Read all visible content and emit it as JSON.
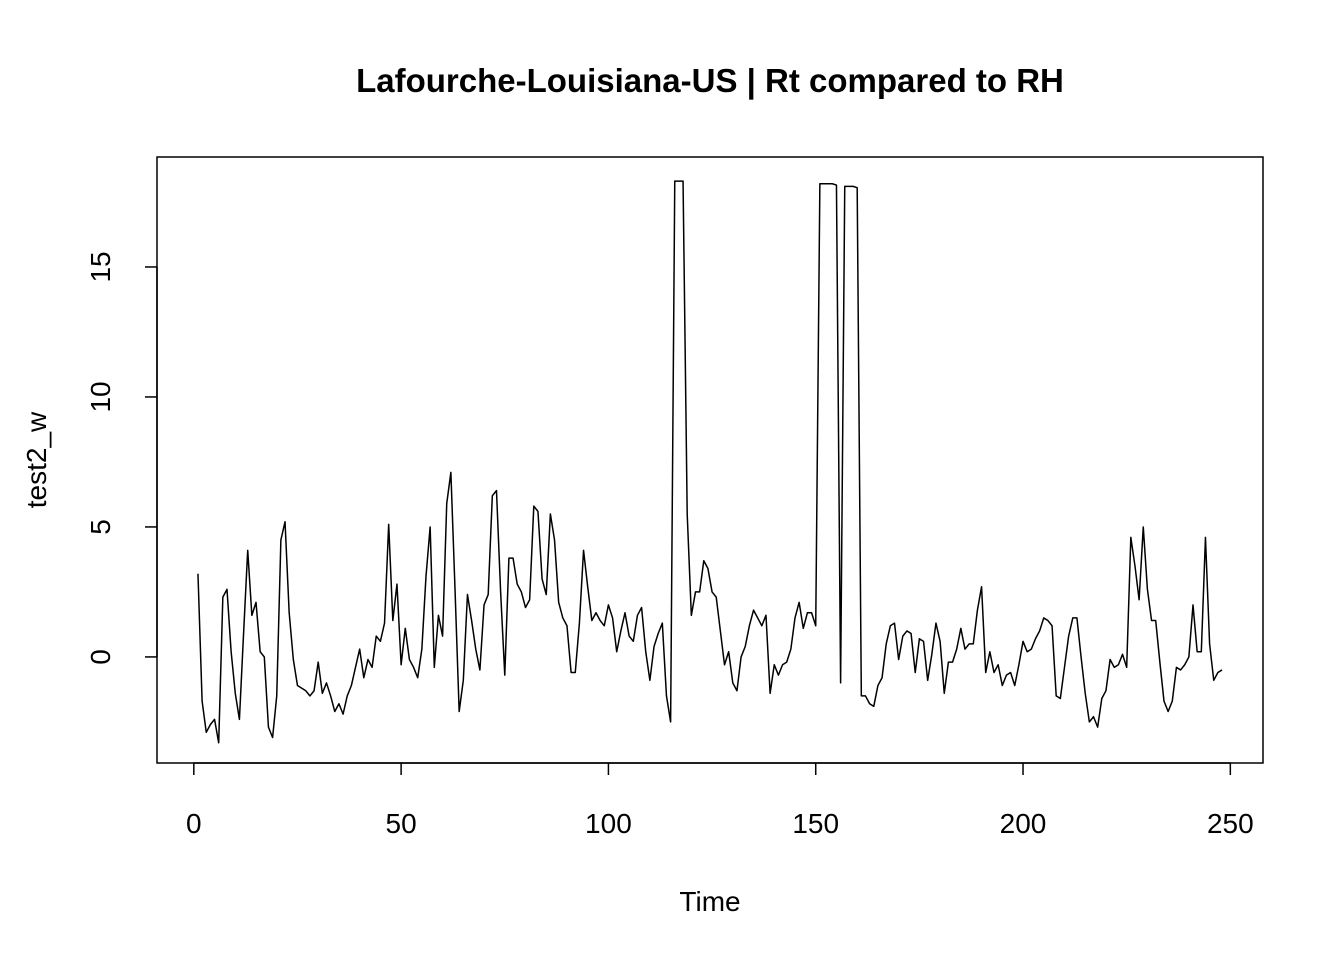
{
  "chart_data": {
    "type": "line",
    "title": "Lafourche-Louisiana-US | Rt compared to RH",
    "x_label": "Time",
    "y_label": "test2_w",
    "x": [
      1,
      2,
      3,
      4,
      5,
      6,
      7,
      8,
      9,
      10,
      11,
      12,
      13,
      14,
      15,
      16,
      17,
      18,
      19,
      20,
      21,
      22,
      23,
      24,
      25,
      26,
      27,
      28,
      29,
      30,
      31,
      32,
      33,
      34,
      35,
      36,
      37,
      38,
      39,
      40,
      41,
      42,
      43,
      44,
      45,
      46,
      47,
      48,
      49,
      50,
      51,
      52,
      53,
      54,
      55,
      56,
      57,
      58,
      59,
      60,
      61,
      62,
      63,
      64,
      65,
      66,
      67,
      68,
      69,
      70,
      71,
      72,
      73,
      74,
      75,
      76,
      77,
      78,
      79,
      80,
      81,
      82,
      83,
      84,
      85,
      86,
      87,
      88,
      89,
      90,
      91,
      92,
      93,
      94,
      95,
      96,
      97,
      98,
      99,
      100,
      101,
      102,
      103,
      104,
      105,
      106,
      107,
      108,
      109,
      110,
      111,
      112,
      113,
      114,
      115,
      116,
      117,
      118,
      119,
      120,
      121,
      122,
      123,
      124,
      125,
      126,
      127,
      128,
      129,
      130,
      131,
      132,
      133,
      134,
      135,
      136,
      137,
      138,
      139,
      140,
      141,
      142,
      143,
      144,
      145,
      146,
      147,
      148,
      149,
      150,
      151,
      152,
      153,
      154,
      155,
      156,
      157,
      158,
      159,
      160,
      161,
      162,
      163,
      164,
      165,
      166,
      167,
      168,
      169,
      170,
      171,
      172,
      173,
      174,
      175,
      176,
      177,
      178,
      179,
      180,
      181,
      182,
      183,
      184,
      185,
      186,
      187,
      188,
      189,
      190,
      191,
      192,
      193,
      194,
      195,
      196,
      197,
      198,
      199,
      200,
      201,
      202,
      203,
      204,
      205,
      206,
      207,
      208,
      209,
      210,
      211,
      212,
      213,
      214,
      215,
      216,
      217,
      218,
      219,
      220,
      221,
      222,
      223,
      224,
      225,
      226,
      227,
      228,
      229,
      230,
      231,
      232,
      233,
      234,
      235,
      236,
      237,
      238,
      239,
      240,
      241,
      242,
      243,
      244,
      245,
      246,
      247,
      248
    ],
    "series": [
      {
        "color": "#000000",
        "values": [
          3.2,
          -1.7,
          -2.9,
          -2.6,
          -2.4,
          -3.3,
          2.3,
          2.6,
          0.2,
          -1.4,
          -2.4,
          0.9,
          4.1,
          1.6,
          2.1,
          0.2,
          0.0,
          -2.7,
          -3.1,
          -1.5,
          4.5,
          5.2,
          1.7,
          -0.1,
          -1.1,
          -1.2,
          -1.3,
          -1.5,
          -1.3,
          -0.2,
          -1.4,
          -1.0,
          -1.5,
          -2.1,
          -1.8,
          -2.2,
          -1.5,
          -1.1,
          -0.4,
          0.3,
          -0.8,
          -0.1,
          -0.4,
          0.8,
          0.6,
          1.3,
          5.1,
          1.4,
          2.8,
          -0.3,
          1.1,
          -0.1,
          -0.4,
          -0.8,
          0.3,
          3.1,
          5.0,
          -0.4,
          1.6,
          0.8,
          5.9,
          7.1,
          2.6,
          -2.1,
          -0.9,
          2.4,
          1.4,
          0.3,
          -0.5,
          2.0,
          2.4,
          6.2,
          6.4,
          2.5,
          -0.7,
          3.8,
          3.8,
          2.8,
          2.5,
          1.9,
          2.2,
          5.8,
          5.6,
          3.0,
          2.4,
          5.5,
          4.5,
          2.1,
          1.5,
          1.2,
          -0.6,
          -0.6,
          1.3,
          4.1,
          2.7,
          1.4,
          1.7,
          1.4,
          1.2,
          2.0,
          1.5,
          0.2,
          1.0,
          1.7,
          0.8,
          0.6,
          1.6,
          1.9,
          0.2,
          -0.9,
          0.4,
          0.9,
          1.3,
          -1.5,
          -2.5,
          18.3,
          18.3,
          18.3,
          5.5,
          1.6,
          2.5,
          2.5,
          3.7,
          3.4,
          2.5,
          2.3,
          1.0,
          -0.3,
          0.2,
          -1.0,
          -1.3,
          0.0,
          0.4,
          1.2,
          1.8,
          1.5,
          1.2,
          1.6,
          -1.4,
          -0.3,
          -0.7,
          -0.3,
          -0.2,
          0.3,
          1.5,
          2.1,
          1.1,
          1.7,
          1.7,
          1.2,
          18.2,
          18.2,
          18.2,
          18.2,
          18.15,
          -1.0,
          18.1,
          18.1,
          18.1,
          18.05,
          -1.5,
          -1.5,
          -1.8,
          -1.9,
          -1.1,
          -0.8,
          0.5,
          1.2,
          1.3,
          -0.1,
          0.8,
          1.0,
          0.9,
          -0.6,
          0.7,
          0.6,
          -0.9,
          0.1,
          1.3,
          0.6,
          -1.4,
          -0.2,
          -0.2,
          0.3,
          1.1,
          0.3,
          0.5,
          0.5,
          1.8,
          2.7,
          -0.6,
          0.2,
          -0.6,
          -0.3,
          -1.1,
          -0.7,
          -0.6,
          -1.1,
          -0.3,
          0.6,
          0.2,
          0.3,
          0.7,
          1.0,
          1.5,
          1.4,
          1.2,
          -1.5,
          -1.6,
          -0.4,
          0.8,
          1.5,
          1.5,
          0.0,
          -1.4,
          -2.5,
          -2.3,
          -2.7,
          -1.6,
          -1.3,
          -0.1,
          -0.4,
          -0.3,
          0.1,
          -0.4,
          4.6,
          3.5,
          2.2,
          5.0,
          2.6,
          1.4,
          1.4,
          -0.2,
          -1.7,
          -2.1,
          -1.7,
          -0.4,
          -0.5,
          -0.3,
          0.0,
          2.0,
          0.2,
          0.2,
          4.6,
          0.5,
          -0.9,
          -0.6,
          -0.5
        ]
      }
    ],
    "xlim": [
      -8.88,
      257.88
    ],
    "ylim": [
      -4.08,
      19.23
    ],
    "xticks": [
      0,
      50,
      100,
      150,
      200,
      250
    ],
    "yticks": [
      0,
      5,
      10,
      15
    ]
  }
}
